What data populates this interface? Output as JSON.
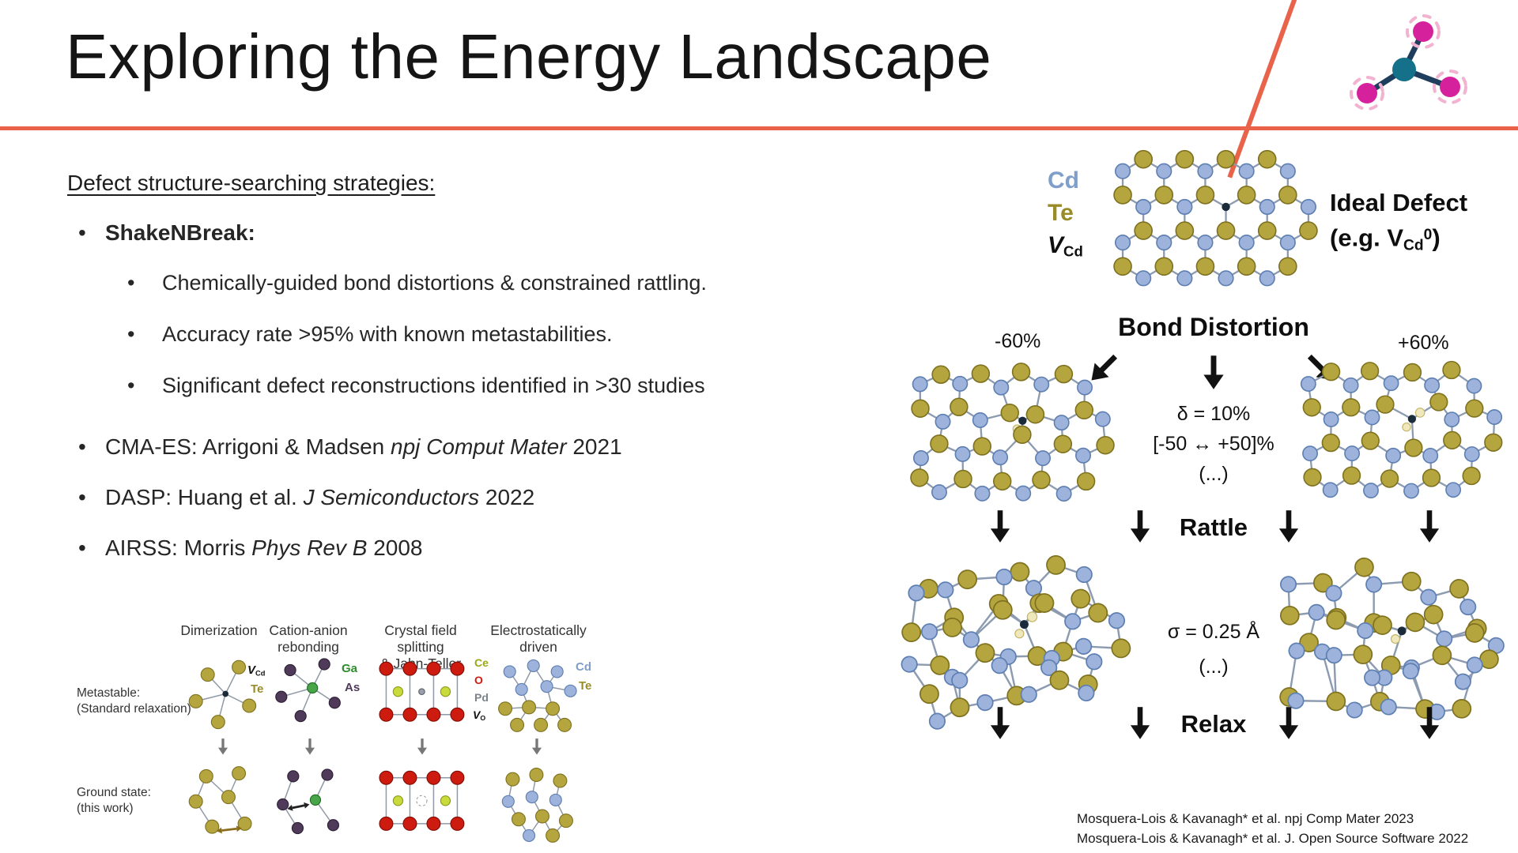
{
  "colors": {
    "accent": "#E8634A",
    "cd_fill": "#9DB3DC",
    "cd_stroke": "#5E7FB2",
    "cd_text": "#7F9EC9",
    "te_fill": "#B5A53E",
    "te_stroke": "#7E711F",
    "te_text": "#998C28",
    "vacancy": "#1C2B3A",
    "bond": "#8C9BB0",
    "purple": "#503A5A",
    "green": "#2E8B2E",
    "red": "#CE1B10",
    "yellow_green": "#9AA815",
    "gray": "#7d838b",
    "magenta": "#D6219C",
    "teal": "#15708A",
    "pink": "#F2B3D0",
    "navy": "#1F3D5C"
  },
  "header": {
    "title": "Exploring the Energy Landscape"
  },
  "left": {
    "heading": "Defect structure-searching strategies:",
    "sb_label": "ShakeNBreak:",
    "sb_points": [
      "Chemically-guided bond distortions & constrained rattling.",
      "Accuracy rate >95% with known metastabilities.",
      "Significant defect reconstructions identified in >30 studies"
    ],
    "methods": [
      {
        "pre": "CMA-ES: Arrigoni & Madsen ",
        "it": "npj Comput Mater",
        "post": " 2021"
      },
      {
        "pre": "DASP: Huang et al. ",
        "it": "J Semiconductors",
        "post": " 2022"
      },
      {
        "pre": "AIRSS: Morris ",
        "it": "Phys Rev B",
        "post": " 2008"
      }
    ]
  },
  "figure": {
    "cols": [
      {
        "l1": "Dimerization",
        "l2": ""
      },
      {
        "l1": "Cation-anion",
        "l2": "rebonding"
      },
      {
        "l1": "Crystal field splitting",
        "l2": "& Jahn-Teller"
      },
      {
        "l1": "Electrostatically",
        "l2": "driven"
      }
    ],
    "row1": {
      "l1": "Metastable:",
      "l2": "(Standard relaxation)"
    },
    "row2": {
      "l1": "Ground state:",
      "l2": "(this work)"
    },
    "labels": {
      "p1_v": "V",
      "p1_vsub": "Cd",
      "p1_te": "Te",
      "p2_ga": "Ga",
      "p2_as": "As",
      "p3_ce": "Ce",
      "p3_o": "O",
      "p3_pd": "Pd",
      "p3_v": "V",
      "p3_vsub": "O",
      "p4_cd": "Cd",
      "p4_te": "Te"
    }
  },
  "diagram": {
    "legend": {
      "cd": "Cd",
      "te": "Te",
      "v": "V",
      "vsub": "Cd"
    },
    "ideal": {
      "l1": "Ideal Defect",
      "pre": "(e.g. V",
      "sub": "Cd",
      "sup": "0",
      "post": ")"
    },
    "bond_distortion": "Bond Distortion",
    "minus": "-60%",
    "plus": "+60%",
    "delta": {
      "l1": "δ = 10%",
      "l2": "[-50 ↔ +50]%",
      "l3": "(...)"
    },
    "rattle": "Rattle",
    "sigma": {
      "l1": "σ = 0.25 Å",
      "l2": "(...)"
    },
    "relax": "Relax"
  },
  "citations": [
    "Mosquera-Lois & Kavanagh* et al. npj Comp Mater 2023",
    "Mosquera-Lois & Kavanagh* et al. J. Open Source Software 2022"
  ]
}
